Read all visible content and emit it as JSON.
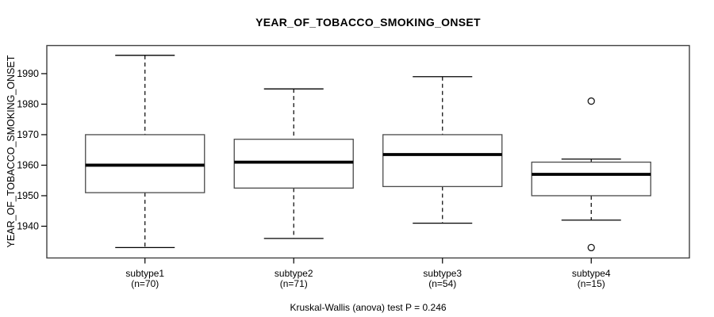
{
  "chart_data": {
    "type": "boxplot",
    "title": "YEAR_OF_TOBACCO_SMOKING_ONSET",
    "ylabel": "YEAR_OF_TOBACCO_SMOKING_ONSET",
    "xlabel": "",
    "annotation": "Kruskal-Wallis (anova) test P = 0.246",
    "y_ticks": [
      1940,
      1950,
      1960,
      1970,
      1980,
      1990
    ],
    "ylim": [
      1929.6,
      1999.2
    ],
    "grid": false,
    "legend": null,
    "groups": [
      {
        "label": "subtype1",
        "sublabel": "(n=70)",
        "n": 70,
        "whisker_low": 1933,
        "q1": 1951,
        "median": 1960,
        "q3": 1970,
        "whisker_high": 1996,
        "outliers": []
      },
      {
        "label": "subtype2",
        "sublabel": "(n=71)",
        "n": 71,
        "whisker_low": 1936,
        "q1": 1952.5,
        "median": 1961,
        "q3": 1968.5,
        "whisker_high": 1985,
        "outliers": []
      },
      {
        "label": "subtype3",
        "sublabel": "(n=54)",
        "n": 54,
        "whisker_low": 1941,
        "q1": 1953,
        "median": 1963.5,
        "q3": 1970,
        "whisker_high": 1989,
        "outliers": []
      },
      {
        "label": "subtype4",
        "sublabel": "(n=15)",
        "n": 15,
        "whisker_low": 1942,
        "q1": 1950,
        "median": 1957,
        "q3": 1961,
        "whisker_high": 1962,
        "outliers": [
          1981,
          1933
        ]
      }
    ],
    "colors": {
      "background": "#ffffff",
      "frame": "#404040",
      "box_border": "#4a4a4a",
      "box_fill": "#ffffff",
      "median": "#000000",
      "whisker": "#000000",
      "outlier": "#1a1a1a",
      "text": "#000000"
    }
  }
}
